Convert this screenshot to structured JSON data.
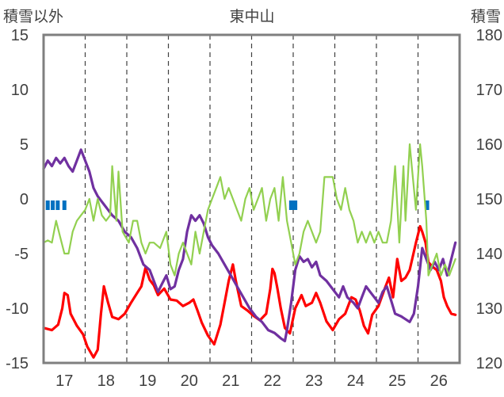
{
  "chart_data": {
    "type": "line",
    "title": "東中山",
    "ylabel_left": "積雪以外",
    "ylabel_right": "積雪",
    "x_ticks": [
      "17",
      "18",
      "19",
      "20",
      "21",
      "22",
      "23",
      "24",
      "25",
      "26"
    ],
    "xlim": [
      16.5,
      26.5
    ],
    "ylim_left": [
      -15,
      15
    ],
    "ylim_right": [
      120,
      180
    ],
    "y_ticks_left": [
      "15",
      "10",
      "5",
      "0",
      "-5",
      "-10",
      "-15"
    ],
    "y_ticks_right": [
      "180",
      "170",
      "160",
      "150",
      "140",
      "130",
      "120"
    ],
    "grid": "dashed vertical",
    "series": [
      {
        "name": "red",
        "color": "#ff0000",
        "axis": "left",
        "points": [
          [
            16.5,
            -11.8
          ],
          [
            16.7,
            -12
          ],
          [
            16.85,
            -11.5
          ],
          [
            16.95,
            -10
          ],
          [
            17.0,
            -8.6
          ],
          [
            17.08,
            -8.8
          ],
          [
            17.15,
            -10.5
          ],
          [
            17.3,
            -11.6
          ],
          [
            17.45,
            -12.4
          ],
          [
            17.55,
            -13.5
          ],
          [
            17.7,
            -14.5
          ],
          [
            17.8,
            -13.8
          ],
          [
            17.88,
            -10.5
          ],
          [
            17.95,
            -8
          ],
          [
            18.05,
            -9.5
          ],
          [
            18.15,
            -10.8
          ],
          [
            18.3,
            -11
          ],
          [
            18.45,
            -10.5
          ],
          [
            18.6,
            -9.5
          ],
          [
            18.75,
            -8.6
          ],
          [
            18.85,
            -8
          ],
          [
            18.95,
            -6.3
          ],
          [
            19.05,
            -7.4
          ],
          [
            19.15,
            -7.9
          ],
          [
            19.25,
            -8.8
          ],
          [
            19.4,
            -8.2
          ],
          [
            19.55,
            -9.2
          ],
          [
            19.7,
            -9.3
          ],
          [
            19.85,
            -9.8
          ],
          [
            20.0,
            -9.5
          ],
          [
            20.1,
            -9.2
          ],
          [
            20.2,
            -10.2
          ],
          [
            20.3,
            -11.3
          ],
          [
            20.45,
            -12.5
          ],
          [
            20.6,
            -13.3
          ],
          [
            20.75,
            -11.5
          ],
          [
            20.85,
            -9.5
          ],
          [
            20.95,
            -7.5
          ],
          [
            21.05,
            -6
          ],
          [
            21.12,
            -7.5
          ],
          [
            21.25,
            -9.8
          ],
          [
            21.4,
            -10.2
          ],
          [
            21.55,
            -10.7
          ],
          [
            21.7,
            -11.1
          ],
          [
            21.85,
            -10.5
          ],
          [
            21.95,
            -8.2
          ],
          [
            22.0,
            -6.4
          ],
          [
            22.05,
            -6.8
          ],
          [
            22.12,
            -8.2
          ],
          [
            22.2,
            -10
          ],
          [
            22.3,
            -11.8
          ],
          [
            22.42,
            -12.3
          ],
          [
            22.55,
            -10
          ],
          [
            22.7,
            -8.8
          ],
          [
            22.8,
            -9.8
          ],
          [
            22.95,
            -9.5
          ],
          [
            23.05,
            -8.6
          ],
          [
            23.15,
            -9.5
          ],
          [
            23.3,
            -11.2
          ],
          [
            23.45,
            -12
          ],
          [
            23.6,
            -11
          ],
          [
            23.75,
            -10.5
          ],
          [
            23.9,
            -9
          ],
          [
            24.0,
            -9.2
          ],
          [
            24.1,
            -10.2
          ],
          [
            24.2,
            -11.6
          ],
          [
            24.3,
            -12.3
          ],
          [
            24.4,
            -10.6
          ],
          [
            24.55,
            -9.8
          ],
          [
            24.7,
            -8.2
          ],
          [
            24.8,
            -7.2
          ],
          [
            24.9,
            -9
          ],
          [
            25.0,
            -5.5
          ],
          [
            25.1,
            -7.5
          ],
          [
            25.2,
            -7.2
          ],
          [
            25.3,
            -6.5
          ],
          [
            25.45,
            -4
          ],
          [
            25.55,
            -2.5
          ],
          [
            25.6,
            -3
          ],
          [
            25.68,
            -4
          ],
          [
            25.75,
            -5.8
          ],
          [
            25.85,
            -6.2
          ],
          [
            25.95,
            -6.5
          ],
          [
            26.05,
            -7.5
          ],
          [
            26.12,
            -9
          ],
          [
            26.2,
            -9.8
          ],
          [
            26.3,
            -10.5
          ],
          [
            26.4,
            -10.6
          ]
        ]
      },
      {
        "name": "purple",
        "color": "#7030a0",
        "axis": "right",
        "points": [
          [
            16.5,
            155.5
          ],
          [
            16.6,
            157
          ],
          [
            16.7,
            156
          ],
          [
            16.8,
            157.5
          ],
          [
            16.9,
            156.5
          ],
          [
            17.0,
            157.5
          ],
          [
            17.1,
            156
          ],
          [
            17.2,
            155
          ],
          [
            17.3,
            157
          ],
          [
            17.4,
            159
          ],
          [
            17.5,
            157
          ],
          [
            17.6,
            155
          ],
          [
            17.7,
            152
          ],
          [
            17.8,
            150.5
          ],
          [
            17.95,
            149
          ],
          [
            18.05,
            148
          ],
          [
            18.15,
            147
          ],
          [
            18.3,
            146
          ],
          [
            18.45,
            144
          ],
          [
            18.6,
            143
          ],
          [
            18.75,
            141
          ],
          [
            18.9,
            138
          ],
          [
            19.05,
            137
          ],
          [
            19.15,
            135
          ],
          [
            19.25,
            133
          ],
          [
            19.35,
            134.5
          ],
          [
            19.45,
            136
          ],
          [
            19.55,
            133.5
          ],
          [
            19.65,
            134
          ],
          [
            19.75,
            137
          ],
          [
            19.85,
            139
          ],
          [
            19.95,
            144
          ],
          [
            20.05,
            147
          ],
          [
            20.15,
            146
          ],
          [
            20.25,
            147
          ],
          [
            20.35,
            145.5
          ],
          [
            20.45,
            143
          ],
          [
            20.55,
            141.5
          ],
          [
            20.7,
            140
          ],
          [
            20.85,
            138
          ],
          [
            21.0,
            136
          ],
          [
            21.15,
            134
          ],
          [
            21.3,
            132
          ],
          [
            21.45,
            130
          ],
          [
            21.6,
            128.5
          ],
          [
            21.75,
            127.5
          ],
          [
            21.9,
            126
          ],
          [
            22.05,
            125.5
          ],
          [
            22.2,
            124.5
          ],
          [
            22.3,
            124
          ],
          [
            22.35,
            126
          ],
          [
            22.45,
            131
          ],
          [
            22.55,
            137
          ],
          [
            22.65,
            139.5
          ],
          [
            22.75,
            138.5
          ],
          [
            22.85,
            139
          ],
          [
            22.95,
            137.5
          ],
          [
            23.05,
            138.5
          ],
          [
            23.15,
            136
          ],
          [
            23.3,
            135
          ],
          [
            23.45,
            133.5
          ],
          [
            23.6,
            132
          ],
          [
            23.7,
            134
          ],
          [
            23.8,
            132
          ],
          [
            23.95,
            131
          ],
          [
            24.05,
            130
          ],
          [
            24.15,
            132
          ],
          [
            24.25,
            134
          ],
          [
            24.35,
            133
          ],
          [
            24.45,
            132
          ],
          [
            24.55,
            131
          ],
          [
            24.65,
            133
          ],
          [
            24.75,
            134
          ],
          [
            24.85,
            131.5
          ],
          [
            24.95,
            129
          ],
          [
            25.1,
            128.5
          ],
          [
            25.2,
            128
          ],
          [
            25.3,
            127.5
          ],
          [
            25.4,
            129
          ],
          [
            25.5,
            134
          ],
          [
            25.6,
            141
          ],
          [
            25.7,
            139
          ],
          [
            25.8,
            137
          ],
          [
            25.9,
            138.5
          ],
          [
            26.0,
            137
          ],
          [
            26.1,
            139
          ],
          [
            26.2,
            136
          ],
          [
            26.3,
            139
          ],
          [
            26.4,
            142
          ]
        ]
      },
      {
        "name": "green",
        "color": "#92d050",
        "axis": "left",
        "points": [
          [
            16.5,
            -4
          ],
          [
            16.6,
            -3.8
          ],
          [
            16.7,
            -4
          ],
          [
            16.8,
            -2
          ],
          [
            16.9,
            -3.5
          ],
          [
            17.0,
            -5
          ],
          [
            17.1,
            -5
          ],
          [
            17.2,
            -3
          ],
          [
            17.3,
            -2
          ],
          [
            17.4,
            -1.5
          ],
          [
            17.5,
            -1
          ],
          [
            17.6,
            0
          ],
          [
            17.7,
            -2
          ],
          [
            17.8,
            0
          ],
          [
            17.9,
            -1.5
          ],
          [
            18.0,
            -2
          ],
          [
            18.1,
            -1.5
          ],
          [
            18.15,
            3
          ],
          [
            18.25,
            -2
          ],
          [
            18.3,
            2.5
          ],
          [
            18.4,
            -3
          ],
          [
            18.55,
            -4
          ],
          [
            18.65,
            -2
          ],
          [
            18.75,
            -2
          ],
          [
            18.85,
            -4
          ],
          [
            18.95,
            -5
          ],
          [
            19.05,
            -4
          ],
          [
            19.15,
            -4
          ],
          [
            19.3,
            -4.5
          ],
          [
            19.45,
            -3
          ],
          [
            19.55,
            -6
          ],
          [
            19.65,
            -7
          ],
          [
            19.75,
            -5
          ],
          [
            19.85,
            -4
          ],
          [
            19.95,
            -5
          ],
          [
            20.05,
            -6
          ],
          [
            20.15,
            -3
          ],
          [
            20.25,
            -5
          ],
          [
            20.35,
            -3
          ],
          [
            20.45,
            -1
          ],
          [
            20.55,
            0
          ],
          [
            20.65,
            1
          ],
          [
            20.75,
            2
          ],
          [
            20.85,
            0
          ],
          [
            20.95,
            1
          ],
          [
            21.05,
            0
          ],
          [
            21.15,
            -1
          ],
          [
            21.25,
            -2
          ],
          [
            21.35,
            0
          ],
          [
            21.45,
            1
          ],
          [
            21.55,
            -1
          ],
          [
            21.65,
            0
          ],
          [
            21.75,
            1
          ],
          [
            21.85,
            -2
          ],
          [
            21.95,
            0
          ],
          [
            22.05,
            1
          ],
          [
            22.15,
            -2
          ],
          [
            22.25,
            2
          ],
          [
            22.35,
            -2
          ],
          [
            22.45,
            -4
          ],
          [
            22.55,
            -6
          ],
          [
            22.65,
            -5
          ],
          [
            22.75,
            -3
          ],
          [
            22.85,
            -2
          ],
          [
            22.95,
            -3
          ],
          [
            23.05,
            -4
          ],
          [
            23.15,
            -3
          ],
          [
            23.25,
            2
          ],
          [
            23.35,
            2
          ],
          [
            23.45,
            2
          ],
          [
            23.55,
            0
          ],
          [
            23.65,
            -1
          ],
          [
            23.75,
            1
          ],
          [
            23.85,
            -1
          ],
          [
            23.95,
            -2
          ],
          [
            24.05,
            -4
          ],
          [
            24.15,
            -3
          ],
          [
            24.25,
            -4
          ],
          [
            24.35,
            -3
          ],
          [
            24.45,
            -4
          ],
          [
            24.55,
            -3
          ],
          [
            24.65,
            -4
          ],
          [
            24.75,
            -4
          ],
          [
            24.85,
            -2
          ],
          [
            24.95,
            3
          ],
          [
            25.05,
            -4
          ],
          [
            25.15,
            3
          ],
          [
            25.2,
            -2
          ],
          [
            25.3,
            5
          ],
          [
            25.35,
            3
          ],
          [
            25.45,
            -1
          ],
          [
            25.55,
            5
          ],
          [
            25.6,
            3
          ],
          [
            25.7,
            -2
          ],
          [
            25.75,
            -7
          ],
          [
            25.85,
            -6
          ],
          [
            25.95,
            -5
          ],
          [
            26.05,
            -7
          ],
          [
            26.15,
            -6
          ],
          [
            26.25,
            -7
          ],
          [
            26.35,
            -6
          ],
          [
            26.4,
            -5.5
          ]
        ]
      }
    ],
    "bars": {
      "name": "blue markers",
      "color": "#0070c0",
      "axis": "left",
      "positions": [
        16.6,
        16.72,
        16.84,
        17.0,
        22.45,
        22.5,
        22.55,
        25.72
      ]
    }
  }
}
